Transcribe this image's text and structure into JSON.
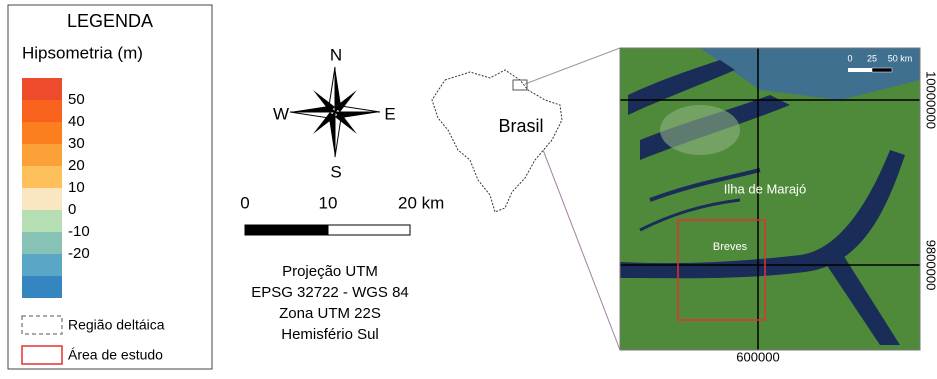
{
  "legend": {
    "title": "LEGENDA",
    "subtitle": "Hipsometria (m)",
    "classes": [
      50,
      40,
      30,
      20,
      10,
      0,
      -10,
      -20
    ],
    "delta_region": "Região deltáica",
    "study_area": "Área de estudo"
  },
  "compass": {
    "north": "N",
    "south": "S",
    "east": "E",
    "west": "W"
  },
  "scale_bar": {
    "labels": [
      "0",
      "10",
      "20 km"
    ]
  },
  "projection": [
    "Projeção UTM",
    "EPSG 32722 - WGS 84",
    "Zona UTM 22S",
    "Hemisfério Sul"
  ],
  "locator": {
    "label": "Brasil"
  },
  "map": {
    "scale_labels": [
      "0",
      "25",
      "50 km"
    ],
    "island": "Ilha de Marajó",
    "city": "Breves",
    "x_coordinate": "600000",
    "y_coordinates": [
      "10000000",
      "9800000"
    ]
  }
}
